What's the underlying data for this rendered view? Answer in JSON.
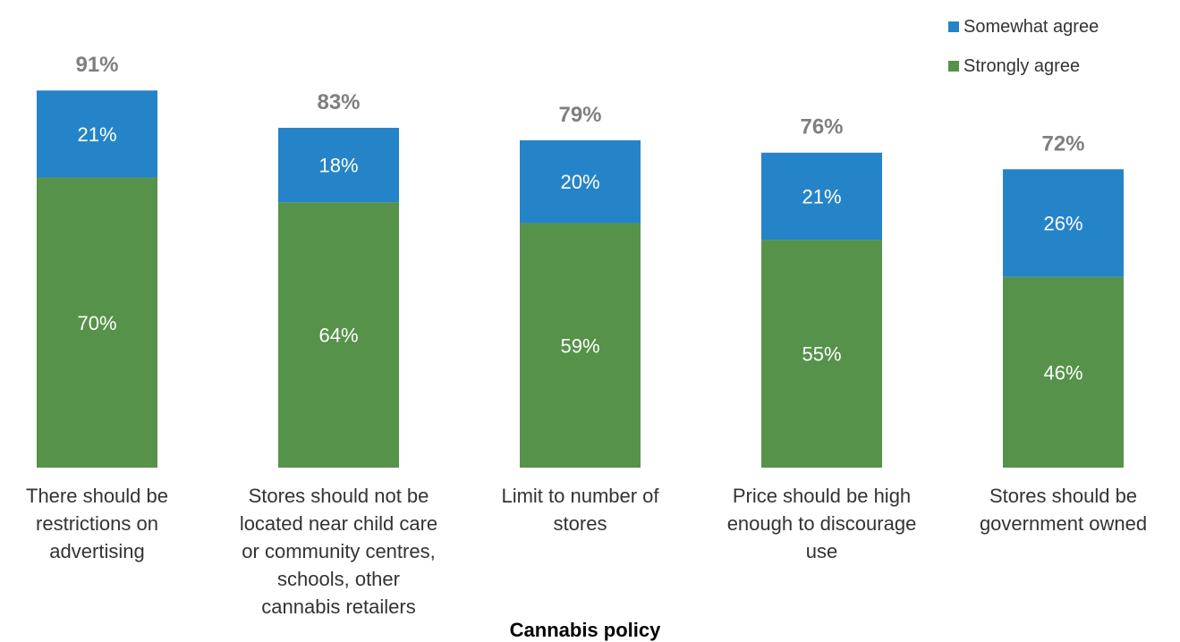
{
  "chart_data": {
    "type": "bar",
    "stacked": true,
    "categories": [
      "There should be restrictions on advertising",
      "Stores should not be located near child care or community centres, schools, other cannabis retailers",
      "Limit to number of stores",
      "Price should be high enough to discourage use",
      "Stores should be government owned"
    ],
    "category_lines": [
      [
        "There should be",
        "restrictions on",
        "advertising"
      ],
      [
        "Stores should not be",
        "located near child care",
        "or community centres,",
        "schools, other",
        "cannabis retailers"
      ],
      [
        "Limit to number of",
        "stores"
      ],
      [
        "Price should be high",
        "enough to discourage",
        "use"
      ],
      [
        "Stores should be",
        "government owned"
      ]
    ],
    "series": [
      {
        "name": "Strongly agree",
        "color": "#56924A",
        "values": [
          70,
          64,
          59,
          55,
          46
        ]
      },
      {
        "name": "Somewhat agree",
        "color": "#2584C8",
        "values": [
          21,
          18,
          20,
          21,
          26
        ]
      }
    ],
    "segment_labels": [
      [
        "70%",
        "64%",
        "59%",
        "55%",
        "46%"
      ],
      [
        "21%",
        "18%",
        "20%",
        "21%",
        "26%"
      ]
    ],
    "totals": [
      "91%",
      "83%",
      "79%",
      "76%",
      "72%"
    ],
    "xlabel": "Cannabis policy",
    "ylabel": "",
    "ylim": [
      0,
      100
    ],
    "grid": false,
    "legend_position": "top-right"
  }
}
